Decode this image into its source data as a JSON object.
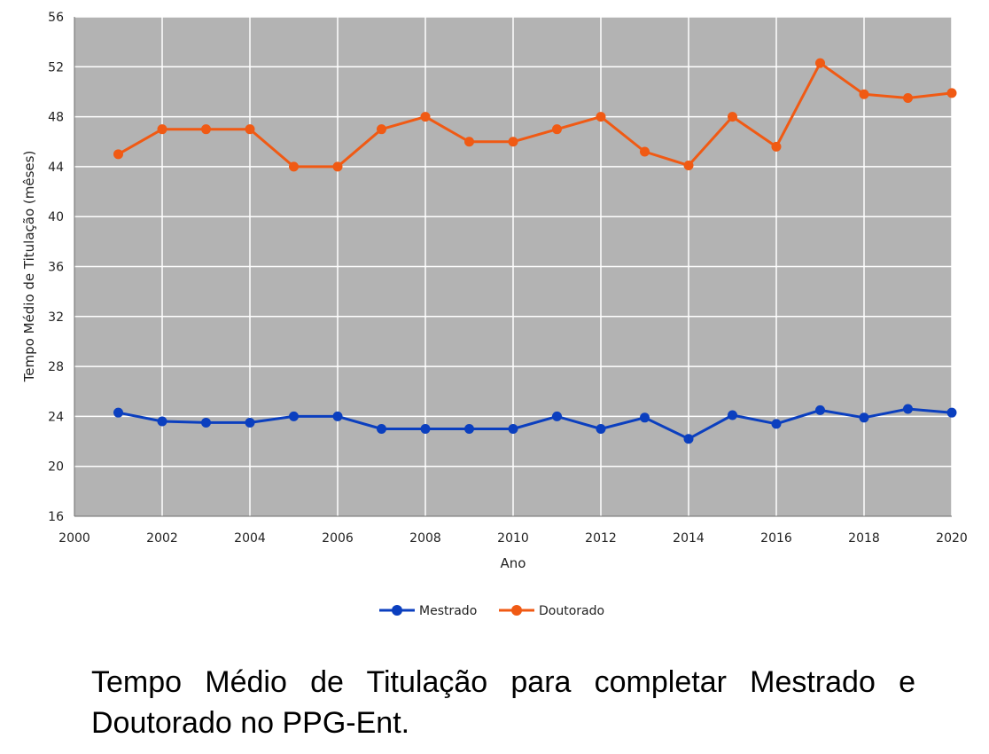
{
  "chart_data": {
    "type": "line",
    "xlabel": "Ano",
    "ylabel": "Tempo Médio de Titulação (mêses)",
    "xlim": [
      2000,
      2020
    ],
    "ylim": [
      16,
      56
    ],
    "xticks": [
      2000,
      2002,
      2004,
      2006,
      2008,
      2010,
      2012,
      2014,
      2016,
      2018,
      2020
    ],
    "yticks": [
      16,
      20,
      24,
      28,
      32,
      36,
      40,
      44,
      48,
      52,
      56
    ],
    "grid": true,
    "plot_background": "#b3b3b3",
    "legend_position": "bottom-center",
    "x": [
      2001,
      2002,
      2003,
      2004,
      2005,
      2006,
      2007,
      2008,
      2009,
      2010,
      2011,
      2012,
      2013,
      2014,
      2015,
      2016,
      2017,
      2018,
      2019,
      2020
    ],
    "series": [
      {
        "name": "Mestrado",
        "color": "#0b3fbf",
        "values": [
          24.3,
          23.6,
          23.5,
          23.5,
          24.0,
          24.0,
          23.0,
          23.0,
          23.0,
          23.0,
          24.0,
          23.0,
          23.9,
          22.2,
          24.1,
          23.4,
          24.5,
          23.9,
          24.6,
          24.3
        ]
      },
      {
        "name": "Doutorado",
        "color": "#f05a14",
        "values": [
          45.0,
          47.0,
          47.0,
          47.0,
          44.0,
          44.0,
          47.0,
          48.0,
          46.0,
          46.0,
          47.0,
          48.0,
          45.2,
          44.1,
          48.0,
          45.6,
          52.3,
          49.8,
          49.5,
          49.9
        ]
      }
    ]
  },
  "caption": "Tempo Médio de Titulação para completar Mestrado e Doutorado no PPG-Ent."
}
